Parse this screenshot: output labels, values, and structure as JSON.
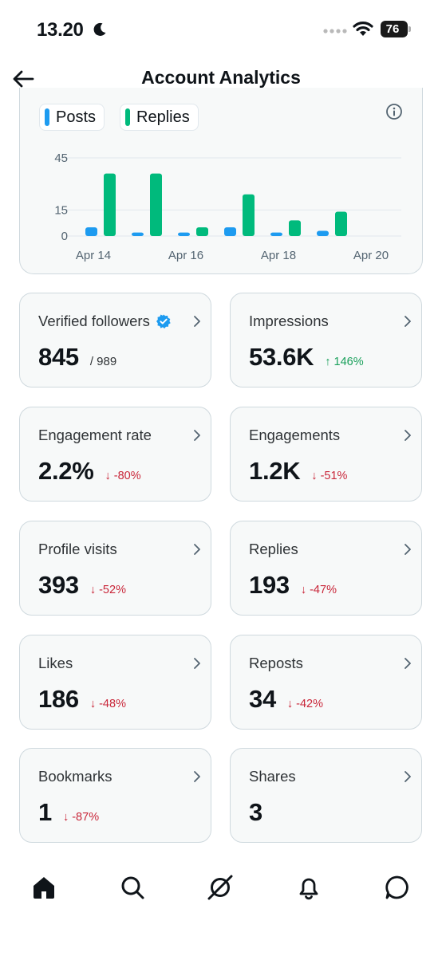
{
  "status_bar": {
    "time": "13.20",
    "battery": "76",
    "icons": [
      "moon-icon",
      "signal-dots-icon",
      "wifi-icon",
      "battery-icon"
    ]
  },
  "header": {
    "title": "Account Analytics",
    "back_icon": "arrow-left-icon"
  },
  "chart_data": {
    "type": "bar",
    "categories": [
      "Apr 14",
      "Apr 15",
      "Apr 16",
      "Apr 17",
      "Apr 18",
      "Apr 19"
    ],
    "x_tick_labels": [
      "Apr 14",
      "Apr 16",
      "Apr 18",
      "Apr 20"
    ],
    "series": [
      {
        "name": "Posts",
        "color": "#1d9bf0",
        "values": [
          5,
          2,
          2,
          5,
          2,
          3
        ]
      },
      {
        "name": "Replies",
        "color": "#00ba7c",
        "values": [
          36,
          36,
          5,
          24,
          9,
          14
        ]
      }
    ],
    "y_ticks": [
      0,
      15,
      45
    ],
    "ylim": [
      0,
      45
    ],
    "grid": true,
    "legend": "top-left"
  },
  "cards": [
    {
      "label": "Verified followers",
      "value": "845",
      "sub": "/ 989",
      "verified": true
    },
    {
      "label": "Impressions",
      "value": "53.6K",
      "delta": "↑ 146%",
      "trend": "up"
    },
    {
      "label": "Engagement rate",
      "value": "2.2%",
      "delta": "↓ -80%",
      "trend": "down"
    },
    {
      "label": "Engagements",
      "value": "1.2K",
      "delta": "↓ -51%",
      "trend": "down"
    },
    {
      "label": "Profile visits",
      "value": "393",
      "delta": "↓ -52%",
      "trend": "down"
    },
    {
      "label": "Replies",
      "value": "193",
      "delta": "↓ -47%",
      "trend": "down"
    },
    {
      "label": "Likes",
      "value": "186",
      "delta": "↓ -48%",
      "trend": "down"
    },
    {
      "label": "Reposts",
      "value": "34",
      "delta": "↓ -42%",
      "trend": "down"
    },
    {
      "label": "Bookmarks",
      "value": "1",
      "delta": "↓ -87%",
      "trend": "down"
    },
    {
      "label": "Shares",
      "value": "3"
    }
  ],
  "bottom_nav": [
    "home-icon",
    "search-icon",
    "grok-icon",
    "bell-icon",
    "messages-icon"
  ],
  "colors": {
    "accent": "#1d9bf0",
    "replies": "#00ba7c",
    "negative": "#c9273a",
    "positive": "#1aa05b"
  }
}
